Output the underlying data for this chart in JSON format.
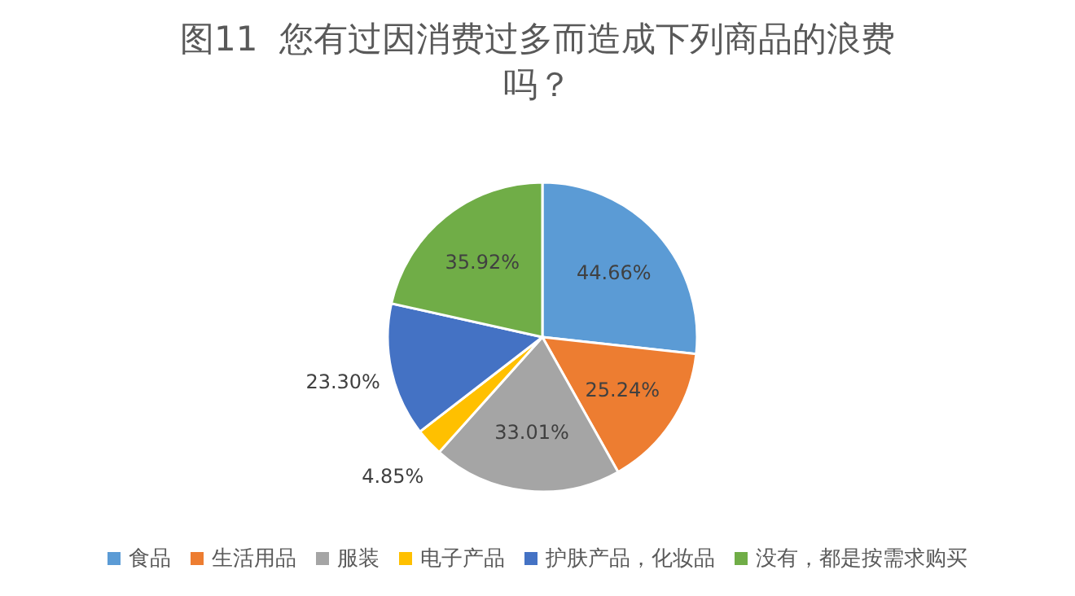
{
  "chart_data": {
    "type": "pie",
    "title": "图11  您有过因消费过多而造成下列商品的浪费吗？",
    "categories": [
      "食品",
      "生活用品",
      "服装",
      "电子产品",
      "护肤产品，化妆品",
      "没有，都是按需求购买"
    ],
    "values": [
      44.66,
      25.24,
      33.01,
      4.85,
      23.3,
      35.92
    ],
    "colors": [
      "#5b9bd5",
      "#ed7d31",
      "#a5a5a5",
      "#ffc000",
      "#4472c4",
      "#70ad47"
    ],
    "value_labels": [
      "44.66%",
      "25.24%",
      "33.01%",
      "4.85%",
      "23.30%",
      "35.92%"
    ],
    "legend": "bottom"
  }
}
